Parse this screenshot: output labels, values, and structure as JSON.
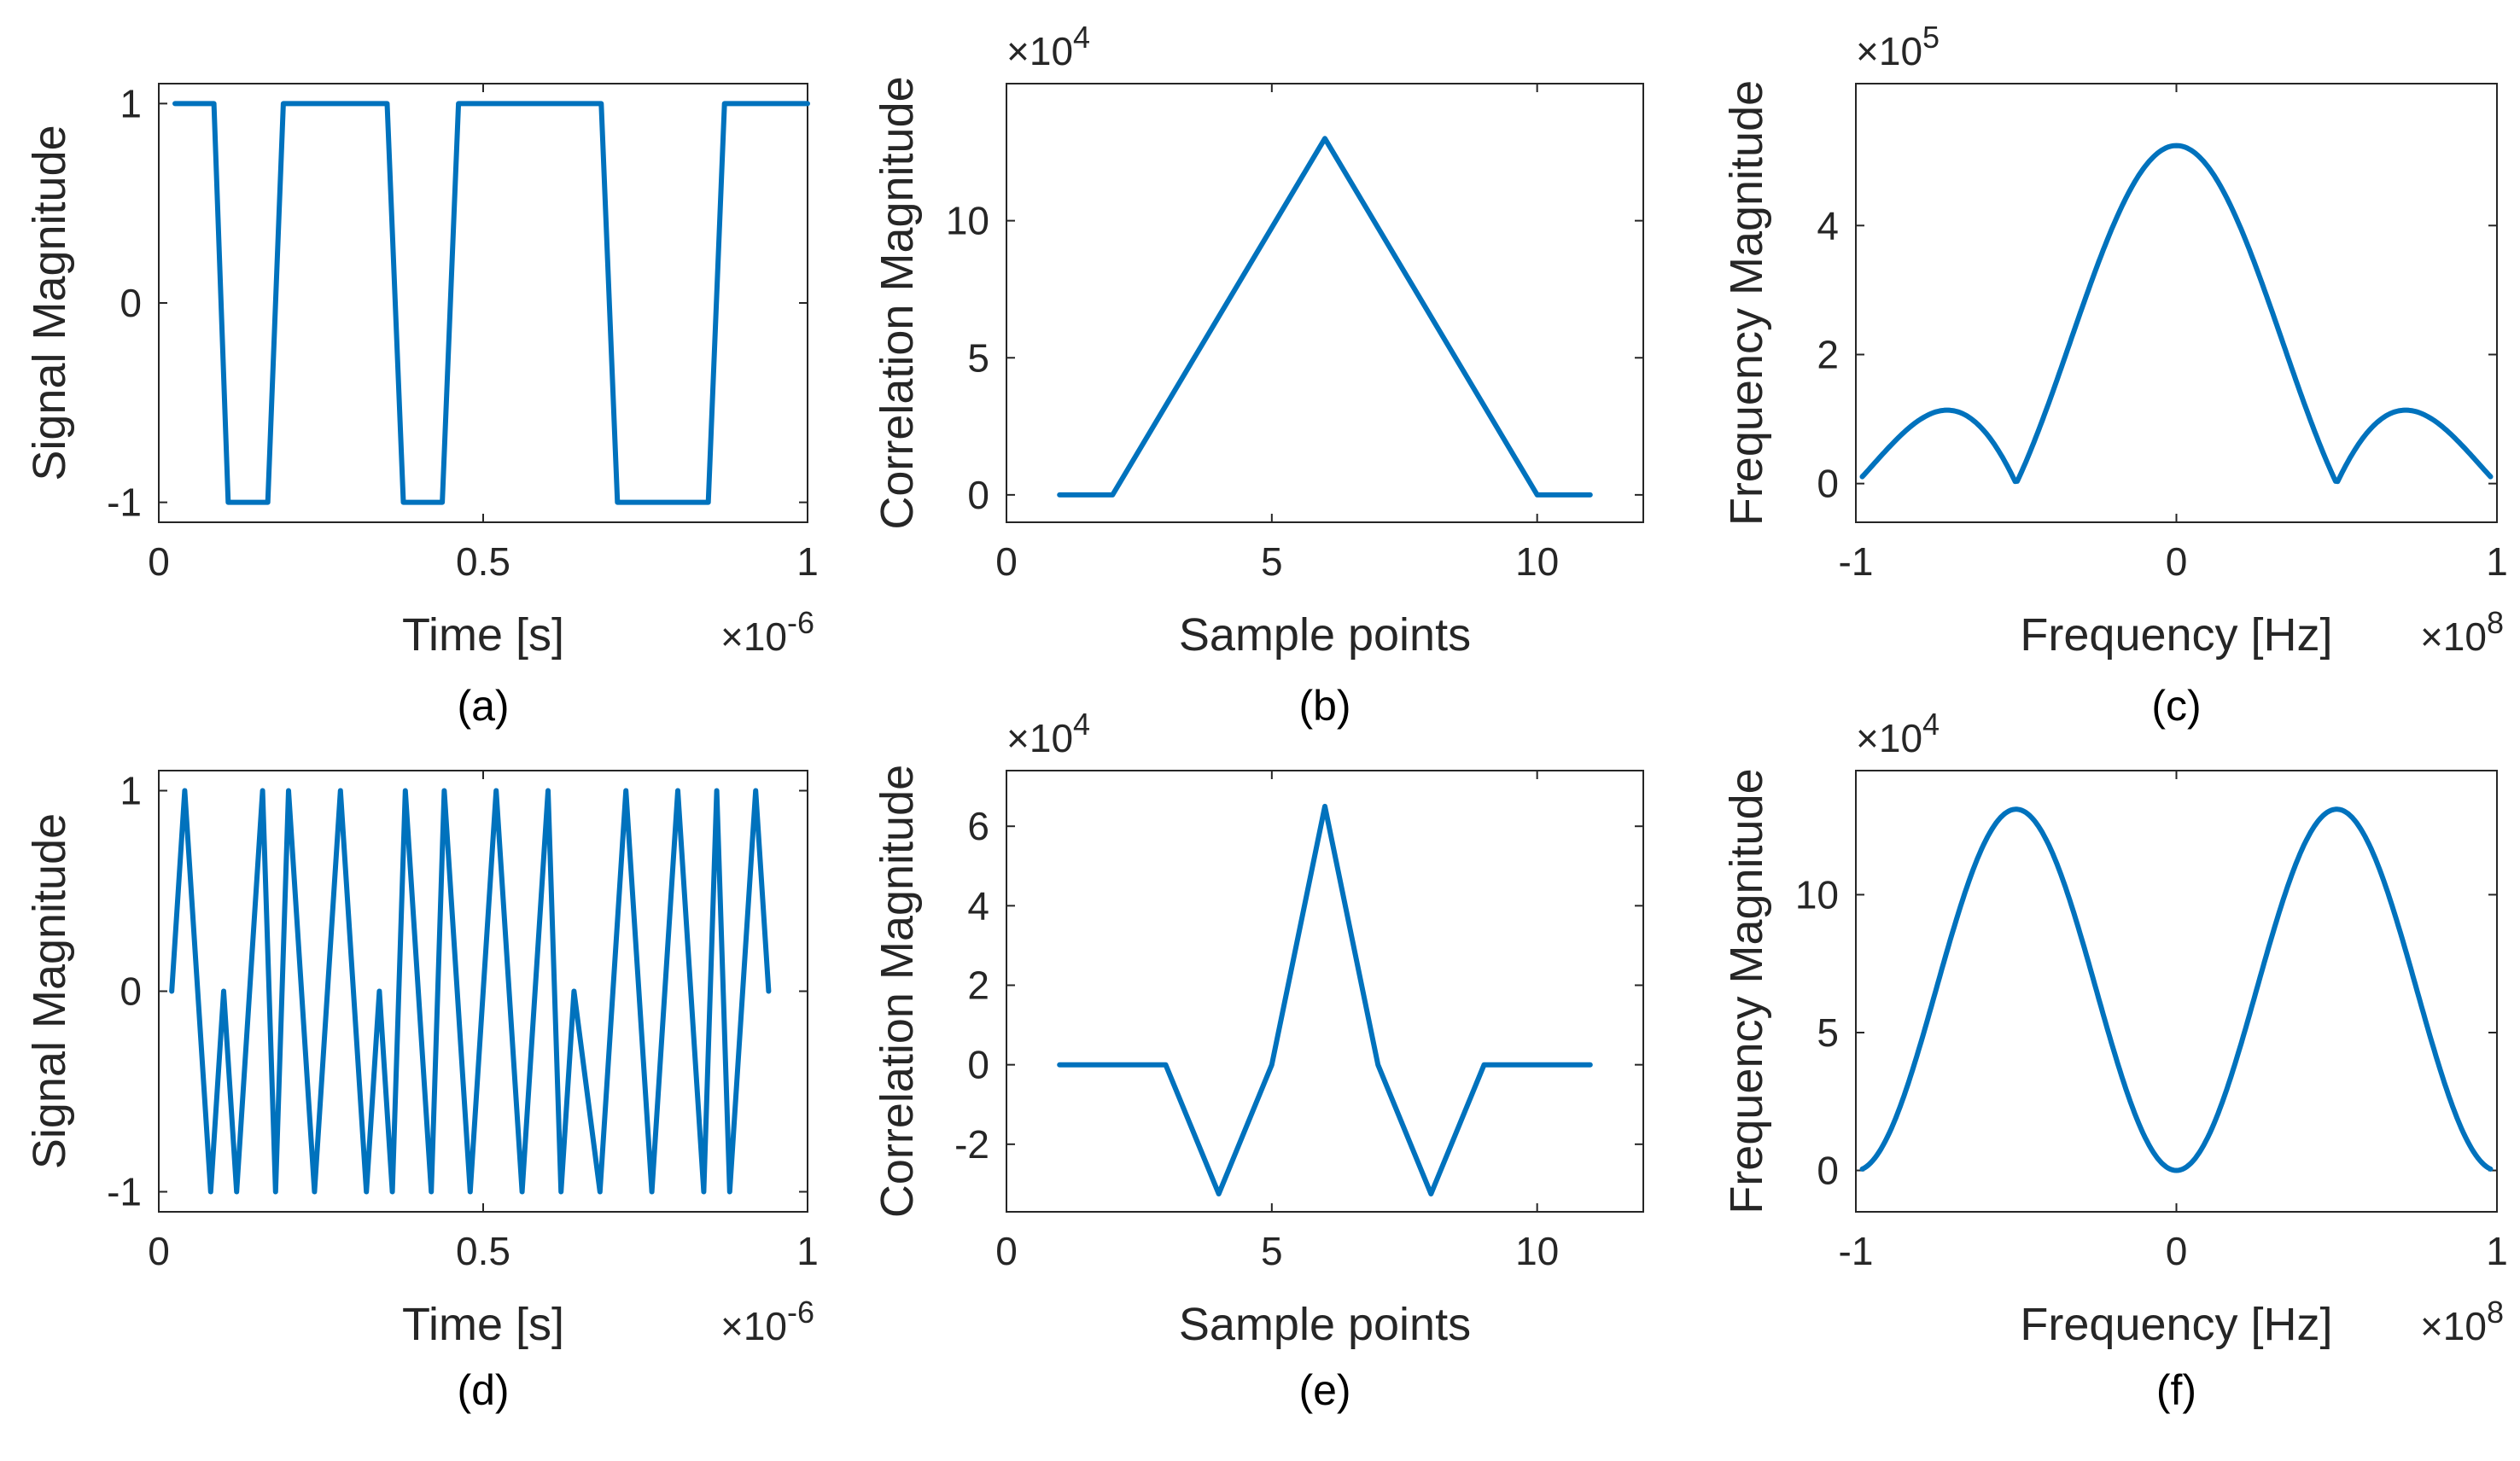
{
  "figure": {
    "line_color": "#0072BD",
    "text_color": "#262626"
  },
  "chart_data": [
    {
      "id": "a",
      "type": "line",
      "caption": "(a)",
      "xlabel": "Time [s]",
      "ylabel": "Signal Magnitude",
      "x_multiplier": "×10^{-6}",
      "x_mult_base": "×10",
      "x_mult_exp": "-6",
      "xlim": [
        0,
        1
      ],
      "ylim": [
        -1.1,
        1.1
      ],
      "xticks": [
        0,
        0.5,
        1
      ],
      "xticklabels": [
        "0",
        "0.5",
        "1"
      ],
      "yticks": [
        -1,
        0,
        1
      ],
      "yticklabels": [
        "-1",
        "0",
        "1"
      ],
      "series": [
        {
          "name": "signal",
          "x": [
            0.025,
            0.085,
            0.107,
            0.168,
            0.192,
            0.352,
            0.377,
            0.437,
            0.462,
            0.682,
            0.707,
            0.847,
            0.872,
            1.0
          ],
          "y": [
            1,
            1,
            -1,
            -1,
            1,
            1,
            -1,
            -1,
            1,
            1,
            -1,
            -1,
            1,
            1
          ]
        }
      ]
    },
    {
      "id": "b",
      "type": "line",
      "caption": "(b)",
      "xlabel": "Sample points",
      "ylabel": "Correlation Magnitude",
      "y_multiplier": "×10^{4}",
      "y_mult_base": "×10",
      "y_mult_exp": "4",
      "xlim": [
        0,
        12
      ],
      "ylim": [
        -1,
        15
      ],
      "xticks": [
        0,
        5,
        10
      ],
      "xticklabels": [
        "0",
        "5",
        "10"
      ],
      "yticks": [
        0,
        5,
        10
      ],
      "yticklabels": [
        "0",
        "5",
        "10"
      ],
      "series": [
        {
          "name": "correlation",
          "x": [
            1,
            2,
            6,
            10,
            11
          ],
          "y": [
            0,
            0,
            13,
            0,
            0
          ]
        }
      ]
    },
    {
      "id": "c",
      "type": "line",
      "caption": "(c)",
      "xlabel": "Frequency [Hz]",
      "ylabel": "Frequency Magnitude",
      "x_multiplier": "×10^{8}",
      "x_mult_base": "×10",
      "x_mult_exp": "8",
      "y_multiplier": "×10^{5}",
      "y_mult_base": "×10",
      "y_mult_exp": "5",
      "xlim": [
        -1,
        1
      ],
      "ylim": [
        -0.6,
        6.2
      ],
      "xticks": [
        -1,
        0,
        1
      ],
      "xticklabels": [
        "-1",
        "0",
        "1"
      ],
      "yticks": [
        0,
        2,
        4
      ],
      "yticklabels": [
        "0",
        "2",
        "4"
      ],
      "series": [
        {
          "name": "spectrum",
          "function": "abs_sinc",
          "peak": 5.24,
          "zero": 0.5,
          "domain": [
            -0.98,
            0.98
          ]
        }
      ]
    },
    {
      "id": "d",
      "type": "line",
      "caption": "(d)",
      "xlabel": "Time [s]",
      "ylabel": "Signal Magnitude",
      "x_multiplier": "×10^{-6}",
      "x_mult_base": "×10",
      "x_mult_exp": "-6",
      "xlim": [
        0,
        1
      ],
      "ylim": [
        -1.1,
        1.1
      ],
      "xticks": [
        0,
        0.5,
        1
      ],
      "xticklabels": [
        "0",
        "0.5",
        "1"
      ],
      "yticks": [
        -1,
        0,
        1
      ],
      "yticklabels": [
        "-1",
        "0",
        "1"
      ],
      "series": [
        {
          "name": "signal",
          "x": [
            0.02,
            0.04,
            0.08,
            0.1,
            0.12,
            0.16,
            0.18,
            0.2,
            0.24,
            0.28,
            0.32,
            0.34,
            0.36,
            0.38,
            0.42,
            0.44,
            0.48,
            0.52,
            0.56,
            0.6,
            0.62,
            0.64,
            0.68,
            0.72,
            0.76,
            0.8,
            0.84,
            0.86,
            0.88,
            0.92,
            0.94
          ],
          "y": [
            0,
            1,
            -1,
            0,
            -1,
            1,
            -1,
            1,
            -1,
            1,
            -1,
            0,
            -1,
            1,
            -1,
            1,
            -1,
            1,
            -1,
            1,
            -1,
            0,
            -1,
            1,
            -1,
            1,
            -1,
            1,
            -1,
            1,
            0
          ]
        }
      ]
    },
    {
      "id": "e",
      "type": "line",
      "caption": "(e)",
      "xlabel": "Sample points",
      "ylabel": "Correlation Magnitude",
      "y_multiplier": "×10^{4}",
      "y_mult_base": "×10",
      "y_mult_exp": "4",
      "xlim": [
        0,
        12
      ],
      "ylim": [
        -3.7,
        7.4
      ],
      "xticks": [
        0,
        5,
        10
      ],
      "xticklabels": [
        "0",
        "5",
        "10"
      ],
      "yticks": [
        -2,
        0,
        2,
        4,
        6
      ],
      "yticklabels": [
        "-2",
        "0",
        "2",
        "4",
        "6"
      ],
      "series": [
        {
          "name": "correlation",
          "x": [
            1,
            3,
            4,
            5,
            6,
            7,
            8,
            9,
            11
          ],
          "y": [
            0,
            0,
            -3.25,
            0,
            6.5,
            0,
            -3.25,
            0,
            0
          ]
        }
      ]
    },
    {
      "id": "f",
      "type": "line",
      "caption": "(f)",
      "xlabel": "Frequency [Hz]",
      "ylabel": "Frequency Magnitude",
      "x_multiplier": "×10^{8}",
      "x_mult_base": "×10",
      "x_mult_exp": "8",
      "y_multiplier": "×10^{4}",
      "y_mult_base": "×10",
      "y_mult_exp": "4",
      "xlim": [
        -1,
        1
      ],
      "ylim": [
        -1.5,
        14.5
      ],
      "xticks": [
        -1,
        0,
        1
      ],
      "xticklabels": [
        "-1",
        "0",
        "1"
      ],
      "yticks": [
        0,
        5,
        10
      ],
      "yticklabels": [
        "0",
        "5",
        "10"
      ],
      "series": [
        {
          "name": "spectrum",
          "function": "sin_squared",
          "peak": 13.1,
          "domain": [
            -0.98,
            0.98
          ]
        }
      ]
    }
  ]
}
